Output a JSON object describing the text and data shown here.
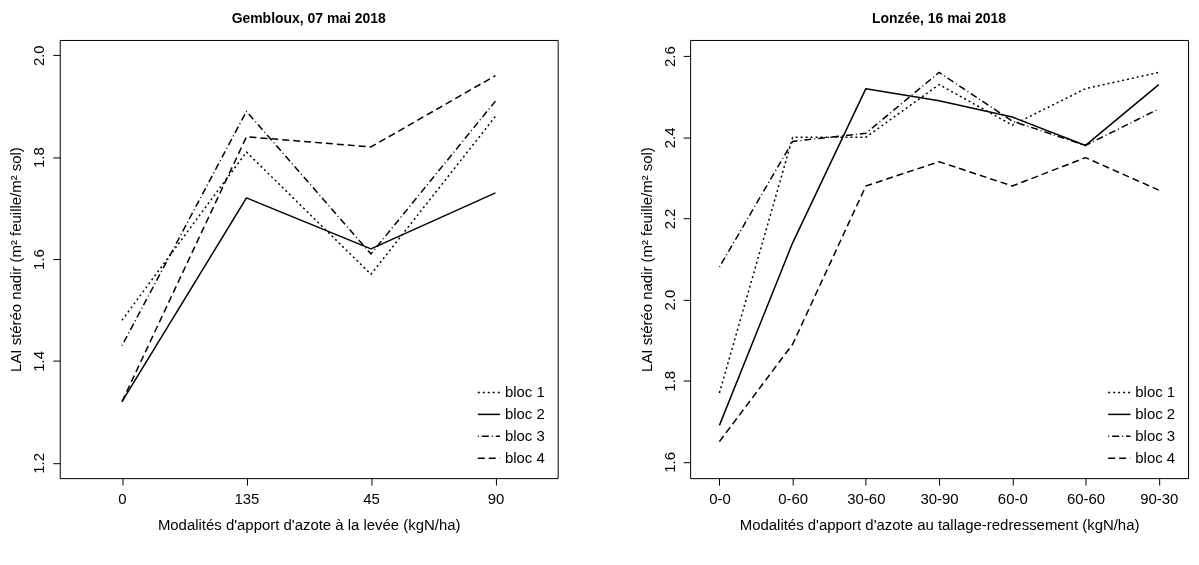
{
  "chart_data": [
    {
      "type": "line",
      "title": "Gembloux, 07 mai 2018",
      "xlabel": "Modalités d'apport d'azote à la levée (kgN/ha)",
      "ylabel": "LAI stéréo nadir (m² feuille/m² sol)",
      "categories": [
        "0",
        "135",
        "45",
        "90"
      ],
      "series": [
        {
          "name": "bloc 1",
          "color": "#000000",
          "line_style": "dotted",
          "values": [
            1.48,
            1.81,
            1.57,
            1.88
          ]
        },
        {
          "name": "bloc 2",
          "color": "#000000",
          "line_style": "solid",
          "values": [
            1.32,
            1.72,
            1.62,
            1.73
          ]
        },
        {
          "name": "bloc 3",
          "color": "#000000",
          "line_style": "dashdot",
          "values": [
            1.43,
            1.89,
            1.61,
            1.91
          ]
        },
        {
          "name": "bloc 4",
          "color": "#000000",
          "line_style": "dashed",
          "values": [
            1.32,
            1.84,
            1.82,
            1.96
          ]
        }
      ],
      "ylim": [
        1.17,
        2.03
      ],
      "yticks": [
        1.2,
        1.4,
        1.6,
        1.8,
        {
          "value": 2,
          "label": "2.0"
        }
      ],
      "grid": false,
      "legend": "bottom right",
      "marker": "none"
    },
    {
      "type": "line",
      "title": "Lonzée, 16 mai 2018",
      "xlabel": "Modalités d'apport d'azote au tallage-redressement (kgN/ha)",
      "ylabel": "LAI stéréo nadir (m² feuille/m² sol)",
      "categories": [
        "0-0",
        "0-60",
        "30-60",
        "30-90",
        "60-0",
        "60-60",
        "90-30"
      ],
      "series": [
        {
          "name": "bloc 1",
          "color": "#000000",
          "line_style": "dotted",
          "values": [
            1.77,
            2.4,
            2.4,
            2.53,
            2.43,
            2.52,
            2.56
          ]
        },
        {
          "name": "bloc 2",
          "color": "#000000",
          "line_style": "solid",
          "values": [
            1.69,
            2.14,
            2.52,
            2.49,
            2.45,
            2.38,
            2.53
          ]
        },
        {
          "name": "bloc 3",
          "color": "#000000",
          "line_style": "dashdot",
          "values": [
            2.08,
            2.39,
            2.41,
            2.56,
            2.44,
            2.38,
            2.47
          ]
        },
        {
          "name": "bloc 4",
          "color": "#000000",
          "line_style": "dashed",
          "values": [
            1.65,
            1.89,
            2.28,
            2.34,
            2.28,
            2.35,
            2.27
          ]
        }
      ],
      "ylim": [
        1.56,
        2.64
      ],
      "yticks": [
        1.6,
        1.8,
        {
          "value": 2,
          "label": "2.0"
        },
        2.2,
        2.4,
        2.6
      ],
      "grid": false,
      "legend": "bottom right",
      "marker": "none"
    }
  ]
}
